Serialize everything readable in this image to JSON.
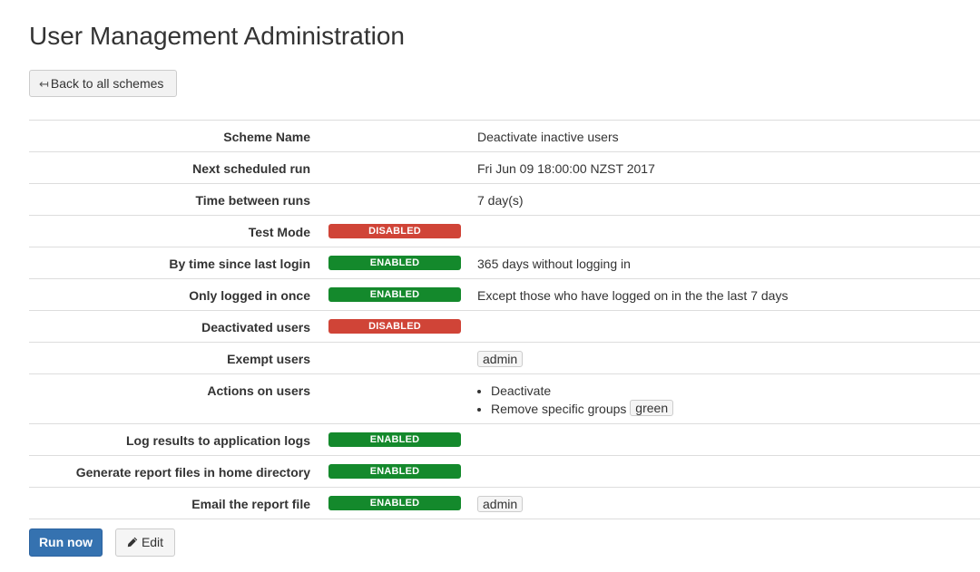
{
  "page": {
    "title": "User Management Administration",
    "back_label": "Back to all schemes"
  },
  "rows": [
    {
      "label": "Scheme Name",
      "value": "Deactivate inactive users"
    },
    {
      "label": "Next scheduled run",
      "value": "Fri Jun 09 18:00:00 NZST 2017"
    },
    {
      "label": "Time between runs",
      "value": "7 day(s)"
    },
    {
      "label": "Test Mode",
      "status": "DISABLED"
    },
    {
      "label": "By time since last login",
      "status": "ENABLED",
      "value": "365 days without logging in"
    },
    {
      "label": "Only logged in once",
      "status": "ENABLED",
      "value": "Except those who have logged on in the the last 7 days"
    },
    {
      "label": "Deactivated users",
      "status": "DISABLED"
    },
    {
      "label": "Exempt users",
      "tag": "admin"
    },
    {
      "label": "Actions on users",
      "actions": [
        "Deactivate",
        "Remove specific groups"
      ],
      "group_tag": "green"
    },
    {
      "label": "Log results to application logs",
      "status": "ENABLED"
    },
    {
      "label": "Generate report files in home directory",
      "status": "ENABLED"
    },
    {
      "label": "Email the report file",
      "status": "ENABLED",
      "tag": "admin"
    }
  ],
  "footer": {
    "run_label": "Run now",
    "edit_label": "Edit"
  },
  "colors": {
    "enabled": "#14892c",
    "disabled": "#d04437",
    "primary": "#3572b0"
  },
  "icons": {
    "back": "back-arrow-icon",
    "edit": "pencil-icon"
  }
}
